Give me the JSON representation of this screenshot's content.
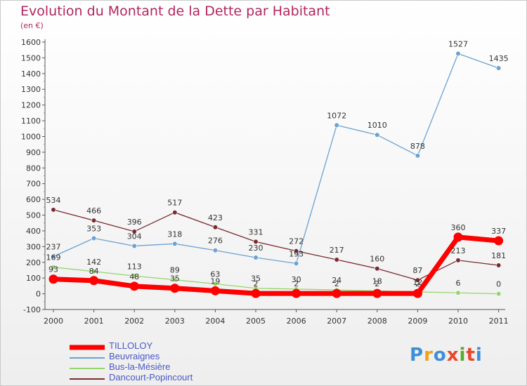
{
  "header": {
    "title": "Evolution du Montant de la Dette par Habitant",
    "subtitle": "(en €)"
  },
  "brand": {
    "logo_text": "Proxiti"
  },
  "chart_data": {
    "type": "line",
    "title": "Evolution du Montant de la Dette par Habitant",
    "subtitle": "(en €)",
    "xlabel": "",
    "ylabel": "",
    "ylim": [
      -100,
      1600
    ],
    "ytick_step": 100,
    "grid": false,
    "legend_position": "bottom-left",
    "x": [
      "2000",
      "2001",
      "2002",
      "2003",
      "2004",
      "2005",
      "2006",
      "2007",
      "2008",
      "2009",
      "2010",
      "2011"
    ],
    "series": [
      {
        "name": "TILLOLOY",
        "color": "#ff0000",
        "values": [
          93,
          84,
          48,
          35,
          19,
          2,
          2,
          2,
          2,
          2,
          360,
          337
        ],
        "labels": [
          "93",
          "84",
          "48",
          "35",
          "19",
          "2",
          "2",
          "2",
          "2",
          "2",
          "360",
          "337"
        ]
      },
      {
        "name": "Beuvraignes",
        "color": "#6ca1d1",
        "values": [
          237,
          353,
          304,
          318,
          276,
          230,
          193,
          1072,
          1010,
          878,
          1527,
          1435
        ],
        "labels": [
          "237",
          "353",
          "304",
          "318",
          "276",
          "230",
          "193",
          "1072",
          "1010",
          "878",
          "1527",
          "1435"
        ]
      },
      {
        "name": "Bus-la-Mésière",
        "color": "#95d46e",
        "values": [
          169,
          142,
          113,
          89,
          63,
          35,
          30,
          24,
          18,
          12,
          6,
          0
        ],
        "labels": [
          "169",
          "142",
          "113",
          "89",
          "63",
          "35",
          "30",
          "24",
          "18",
          "12",
          "6",
          "0"
        ]
      },
      {
        "name": "Dancourt-Popincourt",
        "color": "#7a2c30",
        "values": [
          534,
          466,
          396,
          517,
          423,
          331,
          272,
          217,
          160,
          87,
          213,
          181
        ],
        "labels": [
          "534",
          "466",
          "396",
          "517",
          "423",
          "331",
          "272",
          "217",
          "160",
          "87",
          "213",
          "181"
        ]
      }
    ]
  }
}
